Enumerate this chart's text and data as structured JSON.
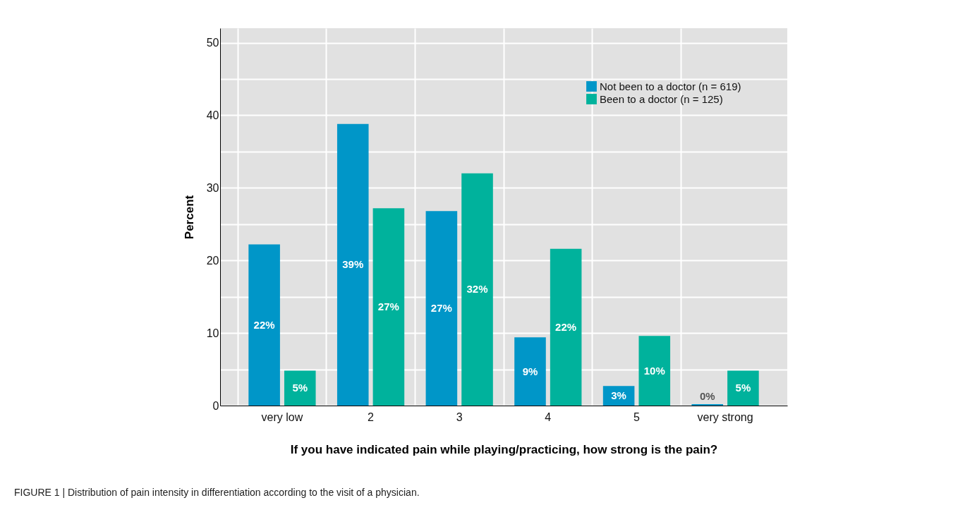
{
  "chart_data": {
    "type": "bar",
    "xlabel": "If you have indicated pain while playing/practicing, how strong is the pain?",
    "ylabel": "Percent",
    "categories": [
      "very low",
      "2",
      "3",
      "4",
      "5",
      "very strong"
    ],
    "series": [
      {
        "name": "Not been to a doctor (n = 619)",
        "color": "#0096c8",
        "values": [
          22.2,
          38.8,
          26.8,
          9.4,
          2.7,
          0.2
        ],
        "value_labels": [
          "22%",
          "39%",
          "27%",
          "9%",
          "3%",
          "0%"
        ]
      },
      {
        "name": "Been to a doctor (n = 125)",
        "color": "#00b29c",
        "values": [
          4.8,
          27.2,
          32.0,
          21.6,
          9.6,
          4.8
        ],
        "value_labels": [
          "5%",
          "27%",
          "32%",
          "22%",
          "10%",
          "5%"
        ]
      }
    ],
    "ylim": [
      0,
      52
    ],
    "yticks": [
      0,
      {
        "value": 5,
        "label": null
      },
      10,
      {
        "value": 15,
        "label": null
      },
      20,
      {
        "value": 25,
        "label": null
      },
      30,
      {
        "value": 35,
        "label": null
      },
      40,
      {
        "value": 45,
        "label": null
      },
      50
    ],
    "grid": true,
    "legend": "top right",
    "annotations": [
      "FIGURE 1 | Distribution of pain intensity in differentiation according to the visit of a physician."
    ]
  }
}
